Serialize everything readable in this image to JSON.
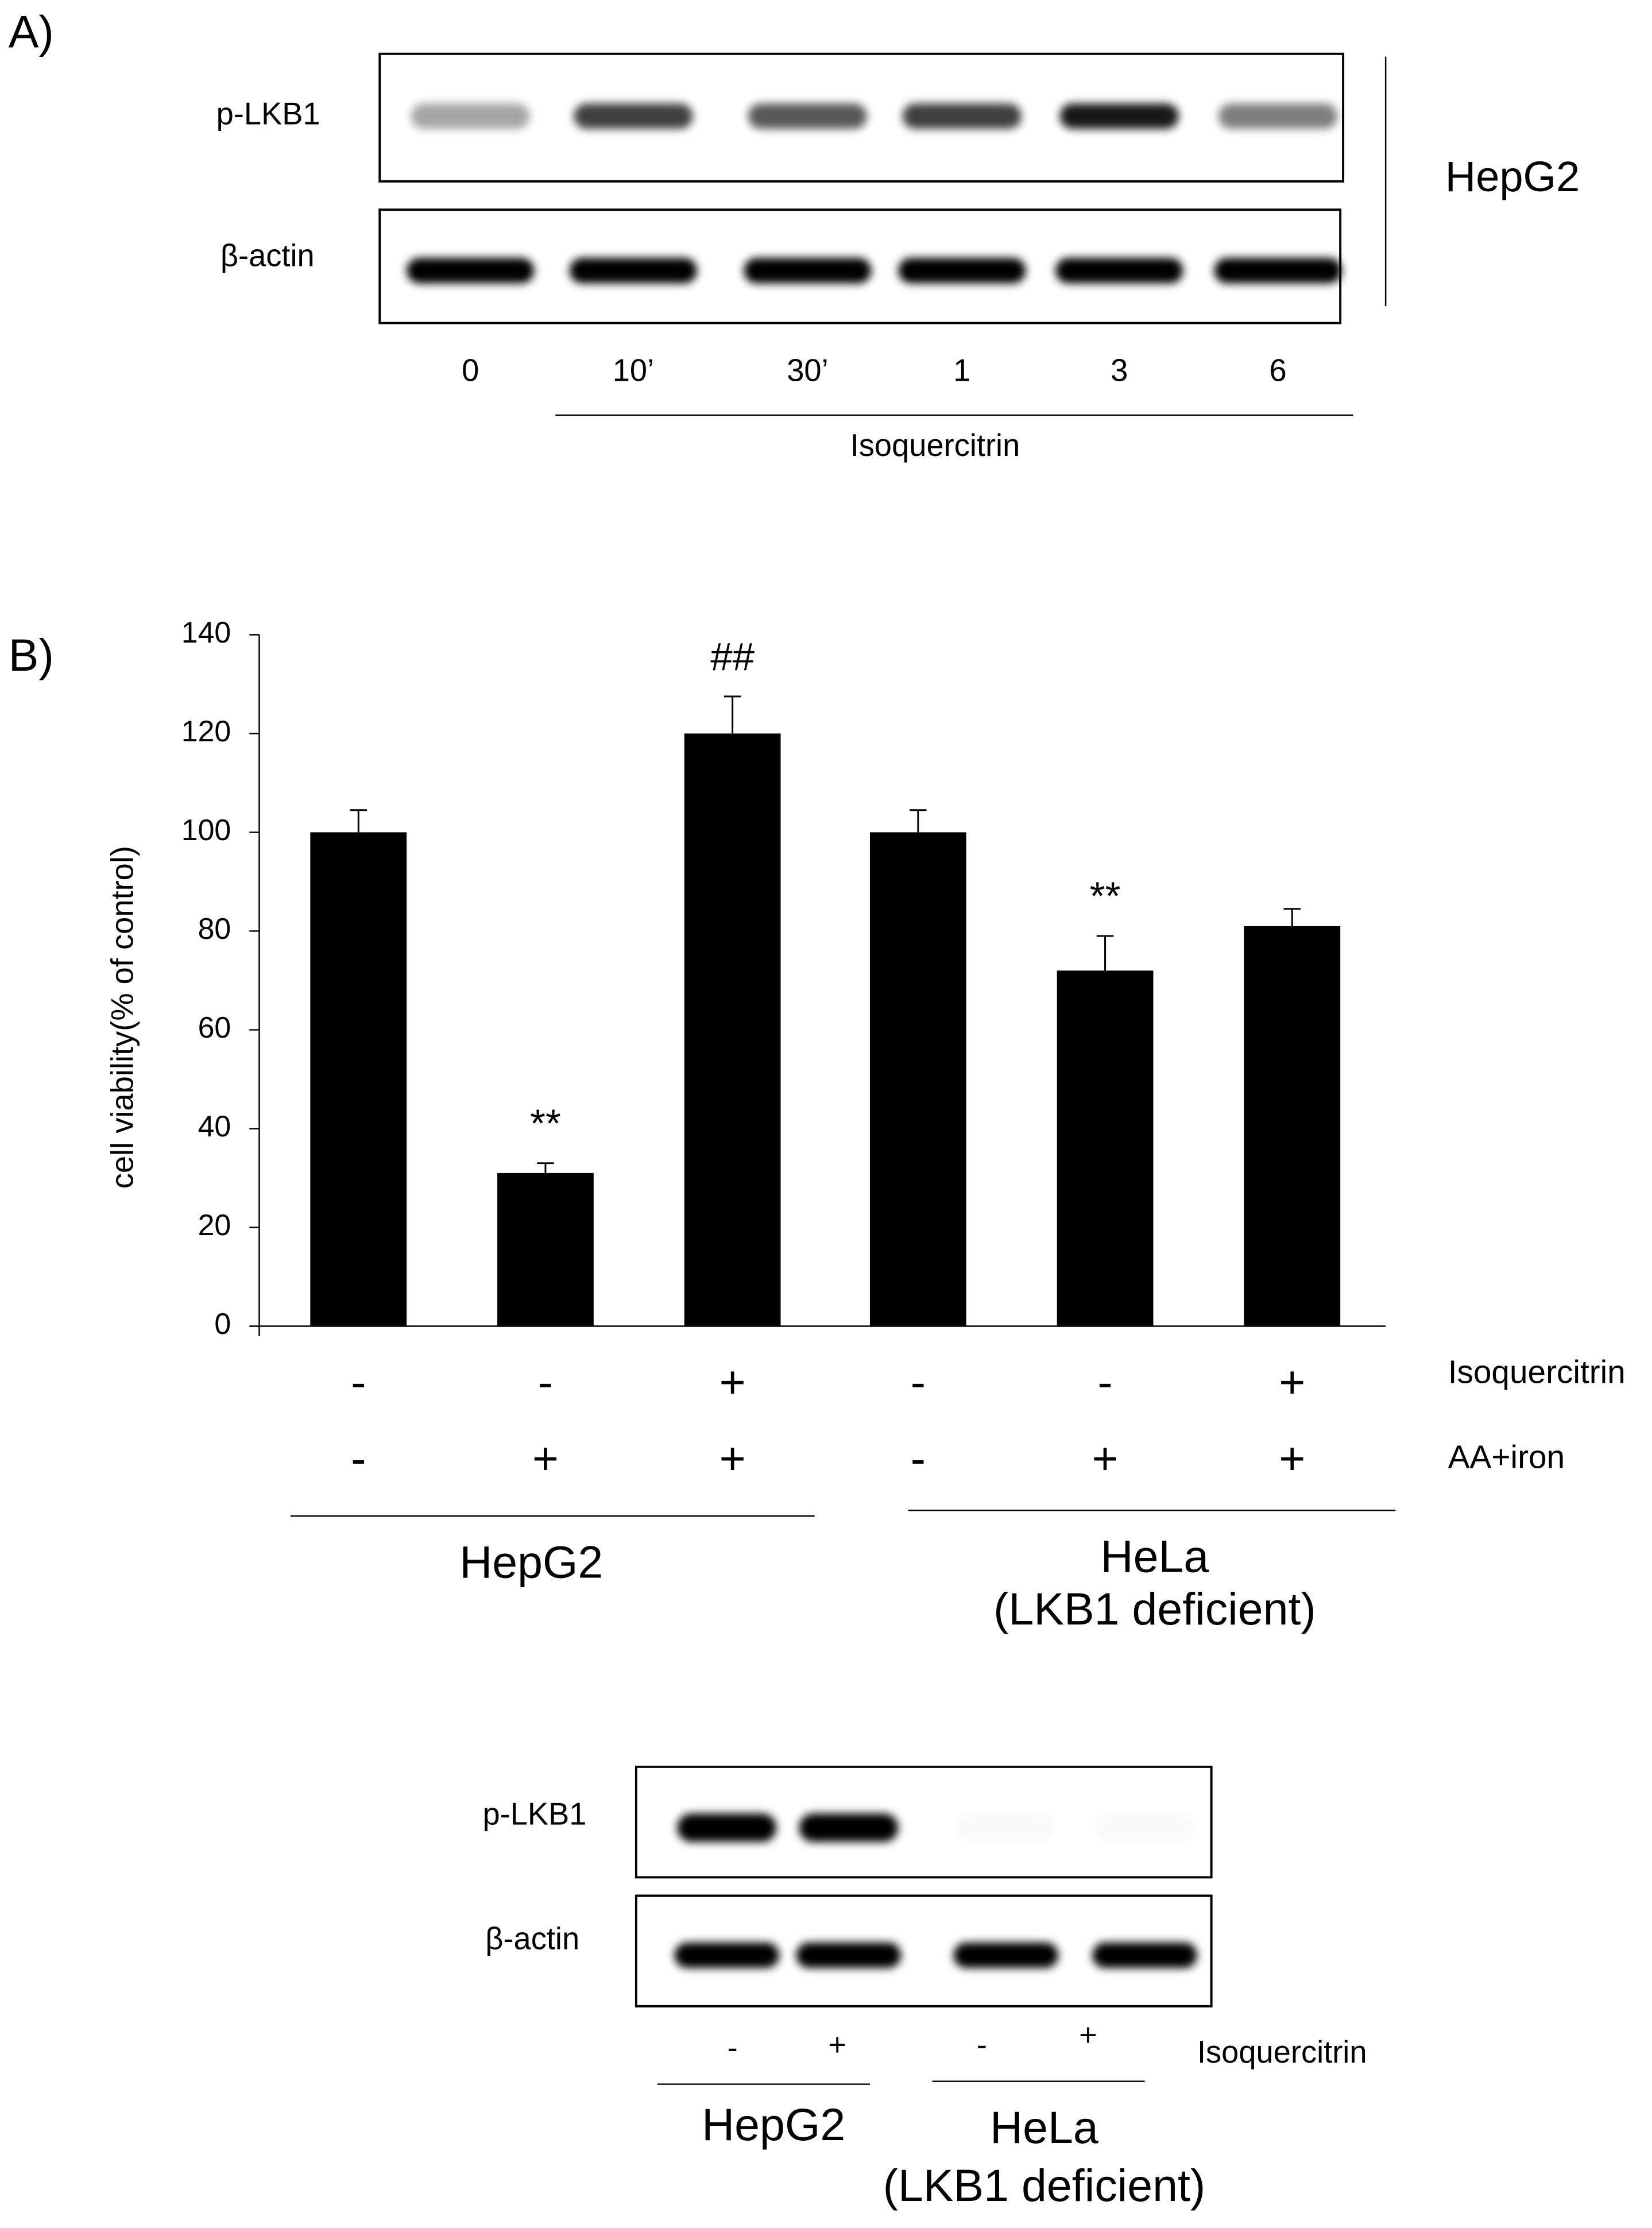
{
  "panel_a": {
    "label": "A)",
    "rows": [
      "p-LKB1",
      "β-actin"
    ],
    "cell_line": "HepG2",
    "lanes": [
      "0",
      "10’",
      "30’",
      "1",
      "3",
      "6"
    ],
    "treatment": "Isoquercitrin"
  },
  "chart_data": {
    "type": "bar",
    "label": "B)",
    "y_label": "cell viability(% of control)",
    "values": [
      100,
      31,
      120,
      100,
      72,
      81
    ],
    "errors": [
      4.5,
      2,
      7.5,
      4.5,
      7,
      3.5
    ],
    "significance": [
      null,
      "**",
      "##",
      null,
      "**",
      null
    ],
    "color": "#000000",
    "ylim": [
      0,
      140
    ],
    "yticks": [
      0,
      20,
      40,
      60,
      80,
      100,
      120,
      140
    ],
    "conditions": [
      {
        "name": "Isoquercitrin",
        "signs": [
          "-",
          "-",
          "+",
          "-",
          "-",
          "+"
        ]
      },
      {
        "name": "AA+iron",
        "signs": [
          "-",
          "+",
          "+",
          "-",
          "+",
          "+"
        ]
      }
    ],
    "groups": [
      [
        "HepG2"
      ],
      [
        "HeLa",
        "(LKB1 deficient)"
      ]
    ]
  },
  "panel_b_blot": {
    "rows": [
      "p-LKB1",
      "β-actin"
    ],
    "signs": [
      "-",
      "+",
      "-",
      "+"
    ],
    "treatment": "Isoquercitrin",
    "groups": [
      [
        "HepG2"
      ],
      [
        "HeLa",
        "(LKB1 deficient)"
      ]
    ]
  }
}
